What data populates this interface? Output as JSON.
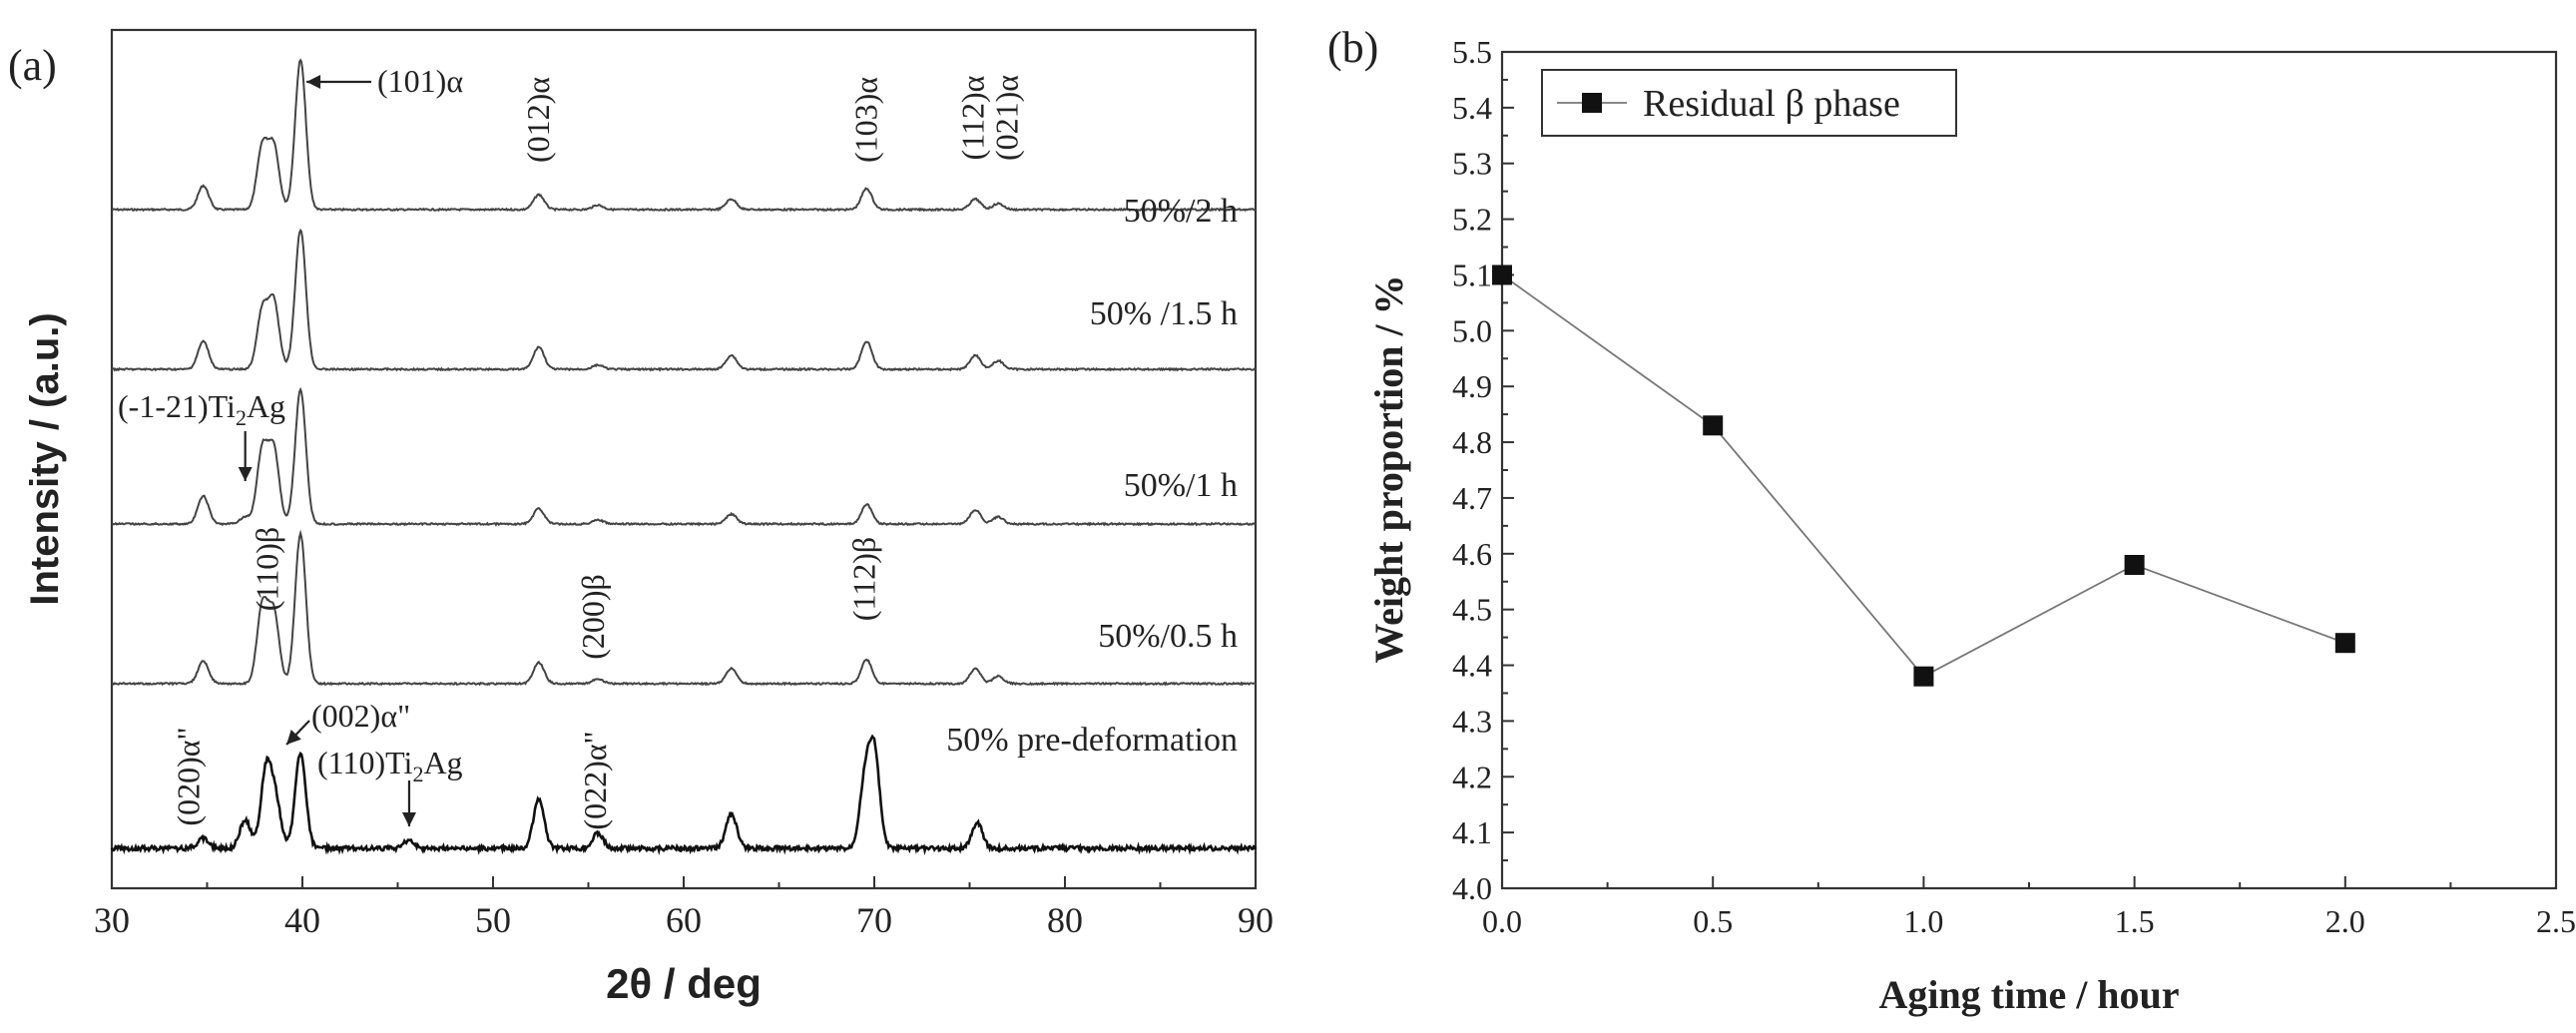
{
  "chart_data": [
    {
      "panel": "(a)",
      "type": "line",
      "xlabel": "2θ / deg",
      "ylabel": "Intensity / (a.u.)",
      "xlim": [
        30,
        90
      ],
      "xticks": [
        "30",
        "40",
        "50",
        "60",
        "70",
        "80",
        "90"
      ],
      "series": [
        {
          "name": "50%/2 h",
          "peaks": [
            {
              "x": 34.8,
              "h": 0.16
            },
            {
              "x": 37.9,
              "h": 0.42
            },
            {
              "x": 38.5,
              "h": 0.42
            },
            {
              "x": 39.9,
              "h": 1.0
            },
            {
              "x": 52.4,
              "h": 0.1
            },
            {
              "x": 55.5,
              "h": 0.03
            },
            {
              "x": 62.5,
              "h": 0.07
            },
            {
              "x": 69.6,
              "h": 0.14
            },
            {
              "x": 75.3,
              "h": 0.07
            },
            {
              "x": 76.5,
              "h": 0.04
            }
          ]
        },
        {
          "name": "50% /1.5 h",
          "peaks": [
            {
              "x": 34.8,
              "h": 0.2
            },
            {
              "x": 37.9,
              "h": 0.42
            },
            {
              "x": 38.5,
              "h": 0.48
            },
            {
              "x": 39.9,
              "h": 1.0
            },
            {
              "x": 52.4,
              "h": 0.16
            },
            {
              "x": 55.5,
              "h": 0.03
            },
            {
              "x": 62.5,
              "h": 0.1
            },
            {
              "x": 69.6,
              "h": 0.2
            },
            {
              "x": 75.3,
              "h": 0.1
            },
            {
              "x": 76.5,
              "h": 0.06
            }
          ]
        },
        {
          "name": "50%/1 h",
          "peaks": [
            {
              "x": 34.8,
              "h": 0.2
            },
            {
              "x": 37.0,
              "h": 0.05
            },
            {
              "x": 37.9,
              "h": 0.53
            },
            {
              "x": 38.5,
              "h": 0.53
            },
            {
              "x": 39.9,
              "h": 0.96
            },
            {
              "x": 52.4,
              "h": 0.11
            },
            {
              "x": 55.5,
              "h": 0.03
            },
            {
              "x": 62.5,
              "h": 0.07
            },
            {
              "x": 69.6,
              "h": 0.14
            },
            {
              "x": 75.3,
              "h": 0.1
            },
            {
              "x": 76.5,
              "h": 0.05
            }
          ]
        },
        {
          "name": "50%/0.5 h",
          "peaks": [
            {
              "x": 34.8,
              "h": 0.15
            },
            {
              "x": 37.9,
              "h": 0.52
            },
            {
              "x": 38.5,
              "h": 0.47
            },
            {
              "x": 39.9,
              "h": 1.0
            },
            {
              "x": 52.4,
              "h": 0.14
            },
            {
              "x": 55.5,
              "h": 0.03
            },
            {
              "x": 62.5,
              "h": 0.1
            },
            {
              "x": 69.6,
              "h": 0.16
            },
            {
              "x": 75.3,
              "h": 0.1
            },
            {
              "x": 76.5,
              "h": 0.05
            }
          ]
        },
        {
          "name": "50% pre-deformation",
          "peaks": [
            {
              "x": 34.8,
              "h": 0.08
            },
            {
              "x": 37.0,
              "h": 0.22
            },
            {
              "x": 38.1,
              "h": 0.6
            },
            {
              "x": 38.6,
              "h": 0.35
            },
            {
              "x": 39.9,
              "h": 0.73
            },
            {
              "x": 45.6,
              "h": 0.06
            },
            {
              "x": 52.4,
              "h": 0.38
            },
            {
              "x": 55.5,
              "h": 0.12
            },
            {
              "x": 62.5,
              "h": 0.27
            },
            {
              "x": 69.5,
              "h": 0.5
            },
            {
              "x": 70.0,
              "h": 0.73
            },
            {
              "x": 75.4,
              "h": 0.2
            }
          ]
        }
      ],
      "annotations": [
        {
          "text": "(101)α",
          "x": 39.9,
          "arrow": true
        },
        {
          "text": "(012)α",
          "x": 52.4
        },
        {
          "text": "(103)α",
          "x": 69.6
        },
        {
          "text": "(112)α",
          "x": 75.2
        },
        {
          "text": "(021)α",
          "x": 77.0
        },
        {
          "text_main": "(-1-21)Ti",
          "text_sub": "2",
          "text_tail": "Ag",
          "x": 37.0,
          "arrow": true
        },
        {
          "text": "(110)β",
          "x": 38.5
        },
        {
          "text": "(200)β",
          "x": 55.5
        },
        {
          "text": "(112)β",
          "x": 69.5
        },
        {
          "text": "(002)α\"",
          "x": 39.9,
          "arrow": true
        },
        {
          "text": "(020)α\"",
          "x": 34.8
        },
        {
          "text_main": "(110)Ti",
          "text_sub": "2",
          "text_tail": "Ag",
          "x": 45.6,
          "arrow": true
        },
        {
          "text": "(022)α\"",
          "x": 55.5
        }
      ]
    },
    {
      "panel": "(b)",
      "type": "line",
      "xlabel": "Aging time / hour",
      "ylabel": "Weight proportion / %",
      "xlim": [
        0.0,
        2.5
      ],
      "ylim": [
        4.0,
        5.5
      ],
      "xticks": [
        "0.0",
        "0.5",
        "1.0",
        "1.5",
        "2.0",
        "2.5"
      ],
      "yticks": [
        "4.0",
        "4.1",
        "4.2",
        "4.3",
        "4.4",
        "4.5",
        "4.6",
        "4.7",
        "4.8",
        "4.9",
        "5.0",
        "5.1",
        "5.2",
        "5.3",
        "5.4",
        "5.5"
      ],
      "legend": "top-left",
      "series": [
        {
          "name": "Residual β phase",
          "x": [
            0.0,
            0.5,
            1.0,
            1.5,
            2.0
          ],
          "y": [
            5.1,
            4.83,
            4.38,
            4.58,
            4.44
          ]
        }
      ]
    }
  ]
}
